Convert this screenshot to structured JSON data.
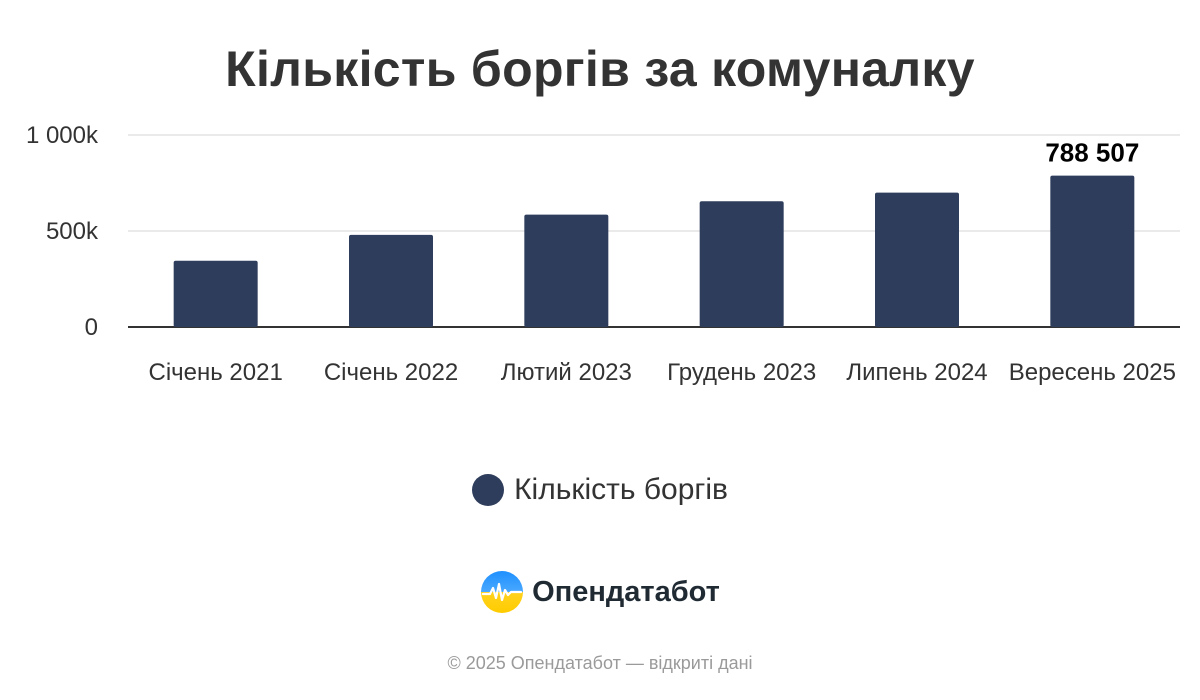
{
  "chart_data": {
    "type": "bar",
    "title": "Кількість боргів за комуналку",
    "categories": [
      "Січень 2021",
      "Січень 2022",
      "Лютий 2023",
      "Грудень 2023",
      "Липень 2024",
      "Вересень 2025"
    ],
    "series": [
      {
        "name": "Кількість боргів",
        "values": [
          345000,
          480000,
          585000,
          655000,
          700000,
          788507
        ],
        "color": "#2e3d5c"
      }
    ],
    "data_labels": [
      {
        "index": 5,
        "text": "788 507"
      }
    ],
    "yticks": [
      {
        "value": 0,
        "label": "0"
      },
      {
        "value": 500000,
        "label": "500k"
      },
      {
        "value": 1000000,
        "label": "1 000k"
      }
    ],
    "ylim": [
      0,
      1000000
    ],
    "xlabel": "",
    "ylabel": "",
    "grid": true,
    "legend_position": "bottom"
  },
  "brand": {
    "name": "Опендатабот",
    "logo_icon": "opendatabot-logo-icon"
  },
  "footer": {
    "text": "© 2025 Опендатабот — відкриті дані"
  }
}
